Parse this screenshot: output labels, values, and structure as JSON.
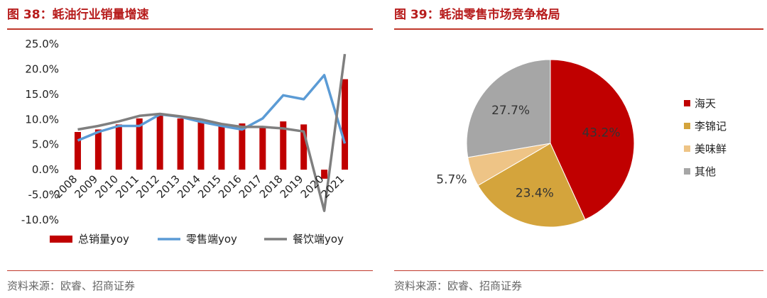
{
  "left": {
    "figure_title": "图 38：蚝油行业销量增速",
    "source": "资料来源：欧睿、招商证券"
  },
  "right": {
    "figure_title": "图 39：蚝油零售市场竞争格局",
    "source": "资料来源：欧睿、招商证券"
  },
  "colors": {
    "accent": "#c0392b",
    "title": "#b71c1c"
  },
  "chart_data": [
    {
      "type": "bar+line",
      "categories": [
        "2008",
        "2009",
        "2010",
        "2011",
        "2012",
        "2013",
        "2014",
        "2015",
        "2016",
        "2017",
        "2018",
        "2019",
        "2020",
        "2021"
      ],
      "series": [
        {
          "name": "总销量yoy",
          "type": "bar",
          "color": "#c00000",
          "values": [
            7.5,
            8.0,
            9.0,
            10.2,
            11.0,
            10.2,
            9.5,
            9.0,
            9.2,
            8.7,
            9.6,
            9.0,
            -1.8,
            18.0
          ]
        },
        {
          "name": "零售端yoy",
          "type": "line",
          "color": "#5b9bd5",
          "values": [
            5.8,
            7.5,
            8.7,
            8.7,
            11.0,
            10.5,
            9.5,
            8.7,
            8.0,
            10.2,
            14.8,
            14.0,
            18.8,
            5.2
          ]
        },
        {
          "name": "餐饮端yoy",
          "type": "line",
          "color": "#7f7f7f",
          "values": [
            8.0,
            8.7,
            9.6,
            10.7,
            11.1,
            10.6,
            10.0,
            9.1,
            8.5,
            8.5,
            8.2,
            7.6,
            -8.2,
            23.0
          ]
        }
      ],
      "ylim": [
        -10,
        25
      ],
      "yticks": [
        "-10.0%",
        "-5.0%",
        "0.0%",
        "5.0%",
        "10.0%",
        "15.0%",
        "20.0%",
        "25.0%"
      ],
      "ytick_values": [
        -10,
        -5,
        0,
        5,
        10,
        15,
        20,
        25
      ],
      "grid": false,
      "legend_position": "bottom"
    },
    {
      "type": "pie",
      "labels": [
        "海天",
        "李锦记",
        "美味鲜",
        "其他"
      ],
      "values": [
        43.2,
        23.4,
        5.7,
        27.7
      ],
      "value_labels": [
        "43.2%",
        "23.4%",
        "5.7%",
        "27.7%"
      ],
      "colors": [
        "#c00000",
        "#d4a43c",
        "#eec486",
        "#a6a6a6"
      ],
      "legend_position": "right"
    }
  ]
}
